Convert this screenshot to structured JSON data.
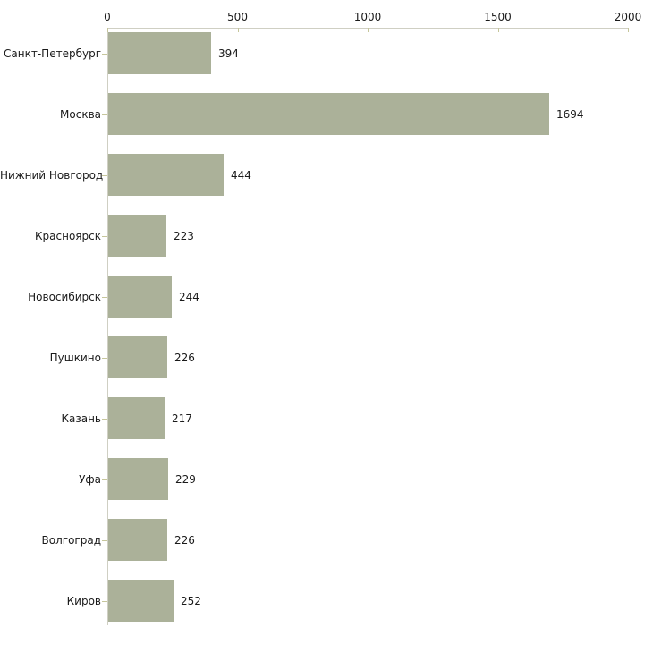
{
  "chart_data": {
    "type": "bar",
    "orientation": "horizontal",
    "title": "",
    "xlabel": "",
    "ylabel": "",
    "categories": [
      "Санкт-Петербург",
      "Москва",
      "Нижний Новгород",
      "Красноярск",
      "Новосибирск",
      "Пушкино",
      "Казань",
      "Уфа",
      "Волгоград",
      "Киров"
    ],
    "values": [
      394,
      1694,
      444,
      223,
      244,
      226,
      217,
      229,
      226,
      252
    ],
    "value_labels": [
      "394",
      "1694",
      "444",
      "223",
      "244",
      "226",
      "217",
      "229",
      "226",
      "252"
    ],
    "xlim": [
      0,
      2000
    ],
    "x_ticks": [
      0,
      500,
      1000,
      1500,
      2000
    ],
    "x_tick_labels": [
      "0",
      "500",
      "1000",
      "1500",
      "2000"
    ],
    "axis_position": "top",
    "grid": false,
    "legend": false,
    "colors": {
      "bar": "#abb199",
      "axis_line": "#cfcfc3",
      "tick": "#c6c69b",
      "text": "#1a1a1a",
      "background": "#ffffff"
    }
  }
}
